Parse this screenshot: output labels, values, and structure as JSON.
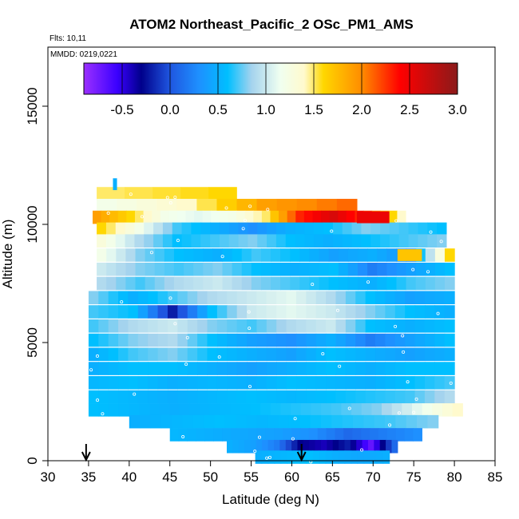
{
  "chart_data": {
    "type": "heatmap",
    "title": "ATOM2 Northeast_Pacific_2 OSc_PM1_AMS",
    "notes": {
      "flights": "Flts: 10,11",
      "dates": "MMDD: 0219,0221"
    },
    "xlabel": "Latitude (deg N)",
    "ylabel": "Altitude (m)",
    "xlim": [
      30,
      85
    ],
    "ylim": [
      0,
      17500
    ],
    "xticks": [
      "30",
      "35",
      "40",
      "45",
      "50",
      "55",
      "60",
      "65",
      "70",
      "75",
      "80",
      "85"
    ],
    "yticks": [
      "0",
      "5000",
      "10000",
      "15000"
    ],
    "colorbar": {
      "range": [
        -0.9,
        3.0
      ],
      "ticks": [
        "-0.5",
        "0.0",
        "0.5",
        "1.0",
        "1.5",
        "2.0",
        "2.5",
        "3.0"
      ],
      "stops": [
        {
          "v": -0.9,
          "c": "#9b30ff"
        },
        {
          "v": -0.55,
          "c": "#3a00ff"
        },
        {
          "v": -0.3,
          "c": "#00008b"
        },
        {
          "v": 0.0,
          "c": "#1f56e0"
        },
        {
          "v": 0.3,
          "c": "#1e90ff"
        },
        {
          "v": 0.6,
          "c": "#00bfff"
        },
        {
          "v": 0.85,
          "c": "#a4d3ee"
        },
        {
          "v": 1.15,
          "c": "#f0fff0"
        },
        {
          "v": 1.4,
          "c": "#fffacd"
        },
        {
          "v": 1.6,
          "c": "#ffd700"
        },
        {
          "v": 2.0,
          "c": "#ff8c00"
        },
        {
          "v": 2.4,
          "c": "#ff0000"
        },
        {
          "v": 3.0,
          "c": "#8b1a1a"
        }
      ]
    },
    "arrows_latitude": [
      34.7,
      61.2
    ],
    "rows": [
      {
        "alt": 11300,
        "lat": [
          36,
          53.2
        ],
        "v": [
          1.5,
          1.6
        ]
      },
      {
        "alt": 10800,
        "lat": [
          36,
          68
        ],
        "v": [
          1.2,
          1.4,
          1.9,
          2.1
        ]
      },
      {
        "alt": 10300,
        "lat": [
          35.5,
          74
        ],
        "v": [
          1.9,
          1.6,
          1.2,
          1.1,
          1.2,
          1.5,
          2.3,
          2.6,
          2.2,
          1.4
        ]
      },
      {
        "alt": 9800,
        "lat": [
          36,
          79
        ],
        "v": [
          1.6,
          1.2,
          0.7,
          0.5,
          0.3,
          0.5,
          0.6,
          0.8,
          0.7,
          0.6
        ]
      },
      {
        "alt": 9300,
        "lat": [
          36,
          79
        ],
        "v": [
          1.3,
          0.9,
          0.6,
          0.7,
          0.8,
          0.6,
          0.5,
          0.6,
          0.7,
          0.8
        ]
      },
      {
        "alt": 8700,
        "lat": [
          36,
          80
        ],
        "v": [
          1.2,
          0.8,
          0.6,
          0.5,
          0.7,
          0.6,
          0.4,
          0.5,
          0.3,
          1.6
        ]
      },
      {
        "alt": 8100,
        "lat": [
          36,
          80
        ],
        "v": [
          1.0,
          0.8,
          0.7,
          0.8,
          0.6,
          0.5,
          0.6,
          0.2,
          0.4,
          0.6
        ]
      },
      {
        "alt": 7500,
        "lat": [
          36,
          80
        ],
        "v": [
          0.9,
          0.7,
          0.9,
          1.0,
          0.8,
          0.7,
          0.6,
          0.5,
          0.7,
          0.8
        ]
      },
      {
        "alt": 6900,
        "lat": [
          35,
          80
        ],
        "v": [
          0.8,
          0.5,
          0.7,
          0.9,
          1.0,
          1.1,
          0.9,
          0.6,
          0.4,
          0.5
        ]
      },
      {
        "alt": 6300,
        "lat": [
          35,
          80
        ],
        "v": [
          0.7,
          0.6,
          -0.2,
          0.6,
          1.0,
          1.1,
          1.0,
          0.8,
          0.6,
          0.5
        ]
      },
      {
        "alt": 5700,
        "lat": [
          35,
          80
        ],
        "v": [
          0.7,
          0.9,
          1.0,
          0.8,
          0.7,
          0.9,
          1.0,
          0.6,
          0.5,
          0.6
        ]
      },
      {
        "alt": 5100,
        "lat": [
          35,
          80
        ],
        "v": [
          0.6,
          0.8,
          0.9,
          0.6,
          0.4,
          0.3,
          0.5,
          0.2,
          0.4,
          0.6
        ]
      },
      {
        "alt": 4500,
        "lat": [
          35,
          80
        ],
        "v": [
          0.5,
          0.7,
          0.8,
          0.6,
          0.5,
          0.4,
          0.6,
          0.5,
          0.4,
          0.5
        ]
      },
      {
        "alt": 3900,
        "lat": [
          35,
          80
        ],
        "v": [
          0.5,
          0.6,
          0.6,
          0.5,
          0.4,
          0.5,
          0.6,
          0.5,
          0.6,
          0.6
        ]
      },
      {
        "alt": 3300,
        "lat": [
          35,
          80
        ],
        "v": [
          0.55,
          0.6,
          0.5,
          0.55,
          0.5,
          0.6,
          0.55,
          0.5,
          0.6,
          0.7
        ]
      },
      {
        "alt": 2700,
        "lat": [
          35,
          80
        ],
        "v": [
          0.6,
          0.55,
          0.5,
          0.55,
          0.6,
          0.55,
          0.6,
          0.65,
          0.7,
          0.9
        ]
      },
      {
        "alt": 2150,
        "lat": [
          35,
          81
        ],
        "v": [
          0.6,
          0.55,
          0.5,
          0.55,
          0.6,
          0.65,
          0.7,
          0.8,
          1.1,
          1.4
        ]
      },
      {
        "alt": 1650,
        "lat": [
          40,
          78
        ],
        "v": [
          0.5,
          0.55,
          0.6,
          0.55,
          0.6,
          0.65,
          0.7,
          0.8
        ]
      },
      {
        "alt": 1100,
        "lat": [
          45,
          76
        ],
        "v": [
          0.55,
          0.5,
          0.45,
          0.4,
          0.3,
          0.1,
          0.2,
          0.3
        ]
      },
      {
        "alt": 600,
        "lat": [
          52,
          73
        ],
        "v": [
          0.5,
          0.4,
          0.2,
          -0.3,
          -0.4,
          -0.2,
          -0.7,
          0.1
        ]
      },
      {
        "alt": 150,
        "lat": [
          55.5,
          72
        ],
        "v": [
          0.5,
          0.55,
          0.6,
          0.5,
          0.45,
          0.5
        ]
      }
    ],
    "patches": [
      {
        "alt": 11700,
        "lat": [
          38,
          38.5
        ],
        "v": 0.5
      },
      {
        "alt": 10300,
        "lat": [
          68,
          72
        ],
        "v": 2.5
      },
      {
        "alt": 8700,
        "lat": [
          73,
          76
        ],
        "v": 1.7
      }
    ]
  }
}
